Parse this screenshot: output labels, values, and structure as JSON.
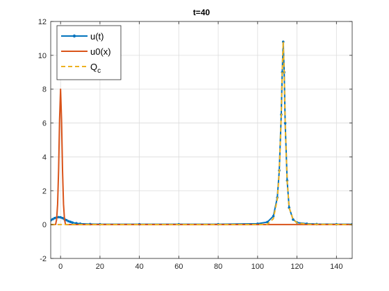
{
  "chart_data": {
    "type": "line",
    "title": "t=40",
    "xlabel": "",
    "ylabel": "",
    "xlim": [
      -5,
      148
    ],
    "ylim": [
      -2,
      12
    ],
    "xticks": [
      0,
      20,
      40,
      60,
      80,
      100,
      120,
      140
    ],
    "yticks": [
      -2,
      0,
      2,
      4,
      6,
      8,
      10,
      12
    ],
    "grid": true,
    "legend_position": "top-left",
    "series": [
      {
        "name": "u(t)",
        "color": "#0072BD",
        "style": "solid-dotted",
        "x": [
          -5,
          -4,
          -3,
          -2,
          -1,
          0,
          1,
          2,
          3,
          4,
          5,
          6,
          8,
          10,
          15,
          20,
          40,
          60,
          80,
          100,
          105,
          108,
          110,
          111,
          112,
          112.5,
          113,
          113.5,
          114,
          115,
          116,
          118,
          120,
          125,
          130,
          140,
          148
        ],
        "y": [
          0.25,
          0.32,
          0.38,
          0.42,
          0.44,
          0.43,
          0.38,
          0.32,
          0.26,
          0.2,
          0.16,
          0.12,
          0.08,
          0.05,
          0.03,
          0.02,
          0.02,
          0.02,
          0.02,
          0.05,
          0.15,
          0.5,
          1.6,
          3.2,
          6.5,
          9,
          10.8,
          9,
          6,
          2.6,
          1.0,
          0.3,
          0.12,
          0.05,
          0.03,
          0.02,
          0.02
        ]
      },
      {
        "name": "u0(x)",
        "color": "#D95319",
        "style": "solid",
        "x": [
          -5,
          -3,
          -2.5,
          -2,
          -1.5,
          -1,
          -0.5,
          0,
          0.5,
          1,
          1.5,
          2,
          2.5,
          3,
          5,
          20,
          60,
          100,
          148
        ],
        "y": [
          0,
          0,
          0.02,
          0.3,
          1.2,
          3.2,
          6.2,
          8,
          6.2,
          3.2,
          1.2,
          0.3,
          0.02,
          0,
          0,
          0,
          0,
          0,
          0
        ]
      },
      {
        "name": "Q_c",
        "color": "#EDB120",
        "style": "dashed",
        "x": [
          -5,
          20,
          60,
          100,
          105,
          108,
          110,
          111,
          112,
          112.5,
          113,
          113.5,
          114,
          115,
          116,
          118,
          120,
          125,
          148
        ],
        "y": [
          0,
          0,
          0,
          0,
          0.02,
          0.35,
          1.5,
          3.1,
          6.4,
          9,
          10.8,
          9,
          6,
          2.6,
          1.0,
          0.3,
          0.1,
          0.02,
          0
        ]
      }
    ]
  },
  "legend": {
    "items": [
      {
        "label": "u(t)",
        "color": "#0072BD",
        "style": "solid-dotted"
      },
      {
        "label": "u0(x)",
        "color": "#D95319",
        "style": "solid"
      },
      {
        "label": "Q",
        "subscript": "c",
        "color": "#EDB120",
        "style": "dashed"
      }
    ]
  }
}
